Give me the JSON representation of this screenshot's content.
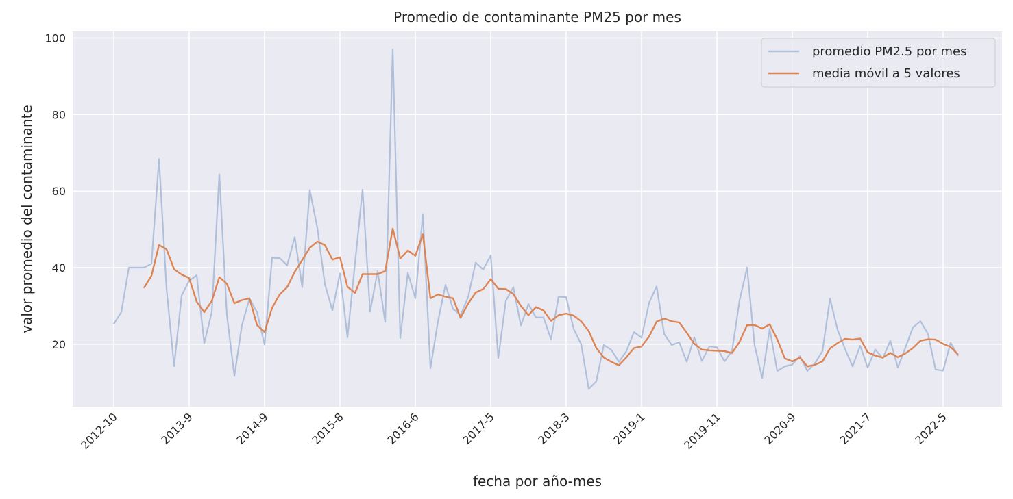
{
  "chart_data": {
    "type": "line",
    "title": "Promedio de contaminante PM25 por mes",
    "xlabel": "fecha por año-mes",
    "ylabel": "valor promedio del contaminante",
    "ylim": [
      3.7,
      101.7
    ],
    "yticks": [
      20,
      40,
      60,
      80,
      100
    ],
    "x_tick_labels": [
      "2012-10",
      "2013-9",
      "2014-9",
      "2015-8",
      "2016-6",
      "2017-5",
      "2018-3",
      "2019-1",
      "2019-11",
      "2020-9",
      "2021-7",
      "2022-5"
    ],
    "x_tick_index": [
      0,
      10,
      20,
      30,
      40,
      50,
      60,
      70,
      80,
      90,
      100,
      110
    ],
    "grid": true,
    "legend_position": "upper right",
    "background_color": "#eaeaf2",
    "grid_color": "#ffffff",
    "series": [
      {
        "name": "promedio PM2.5 por mes",
        "color": "#b0c0db",
        "values": [
          25.3,
          28.4,
          40.0,
          40.0,
          40.0,
          41.0,
          68.4,
          34.5,
          14.3,
          32.7,
          36.6,
          38.0,
          20.3,
          28.4,
          64.4,
          27.7,
          11.7,
          25.0,
          31.9,
          28.4,
          19.9,
          42.6,
          42.5,
          40.6,
          48.0,
          34.9,
          60.3,
          50.4,
          35.7,
          28.8,
          38.5,
          21.8,
          41.2,
          60.4,
          28.5,
          39.1,
          25.8,
          97.0,
          21.6,
          38.7,
          32.0,
          54.0,
          13.7,
          26.0,
          35.5,
          29.2,
          27.6,
          32.3,
          41.3,
          39.5,
          43.2,
          16.4,
          31.3,
          34.9,
          24.9,
          30.5,
          27.0,
          27.0,
          21.3,
          32.4,
          32.3,
          24.0,
          20.0,
          8.3,
          10.3,
          19.8,
          18.5,
          15.4,
          18.2,
          23.2,
          21.7,
          30.8,
          35.1,
          22.7,
          19.8,
          20.5,
          15.4,
          21.8,
          15.6,
          19.4,
          19.2,
          15.5,
          18.2,
          31.4,
          40.0,
          19.7,
          11.2,
          24.0,
          13.0,
          14.2,
          14.7,
          16.9,
          13.0,
          15.0,
          18.2,
          31.9,
          23.8,
          18.7,
          14.2,
          19.6,
          13.9,
          18.6,
          16.3,
          20.9,
          13.9,
          19.1,
          24.4,
          26.0,
          22.7,
          13.4,
          13.1,
          20.4,
          16.9
        ]
      },
      {
        "name": "media móvil a 5 valores",
        "color": "#dd8452",
        "values": [
          null,
          null,
          null,
          null,
          34.7,
          37.9,
          45.9,
          44.8,
          39.6,
          38.2,
          37.3,
          31.1,
          28.4,
          31.3,
          37.5,
          35.8,
          30.7,
          31.5,
          32.0,
          25.0,
          23.2,
          29.5,
          33.0,
          34.9,
          38.9,
          42.0,
          45.2,
          46.8,
          45.9,
          42.1,
          42.7,
          35.0,
          33.4,
          38.3,
          38.3,
          38.3,
          39.1,
          50.2,
          42.4,
          44.5,
          43.1,
          48.7,
          32.0,
          33.0,
          32.4,
          32.0,
          26.9,
          30.6,
          33.5,
          34.4,
          37.0,
          34.5,
          34.4,
          33.1,
          30.0,
          27.6,
          29.7,
          28.8,
          26.1,
          27.6,
          28.0,
          27.5,
          26.0,
          23.4,
          19.0,
          16.5,
          15.4,
          14.5,
          16.6,
          19.0,
          19.4,
          22.0,
          25.9,
          26.7,
          26.0,
          25.7,
          23.0,
          20.1,
          18.6,
          18.4,
          18.3,
          18.2,
          17.7,
          20.6,
          25.0,
          25.0,
          24.1,
          25.2,
          21.3,
          16.3,
          15.5,
          16.5,
          14.2,
          14.6,
          15.5,
          18.9,
          20.3,
          21.4,
          21.2,
          21.5,
          17.9,
          17.0,
          16.5,
          17.7,
          16.6,
          17.6,
          19.0,
          20.9,
          21.3,
          21.2,
          20.1,
          19.3,
          17.3
        ]
      }
    ]
  }
}
